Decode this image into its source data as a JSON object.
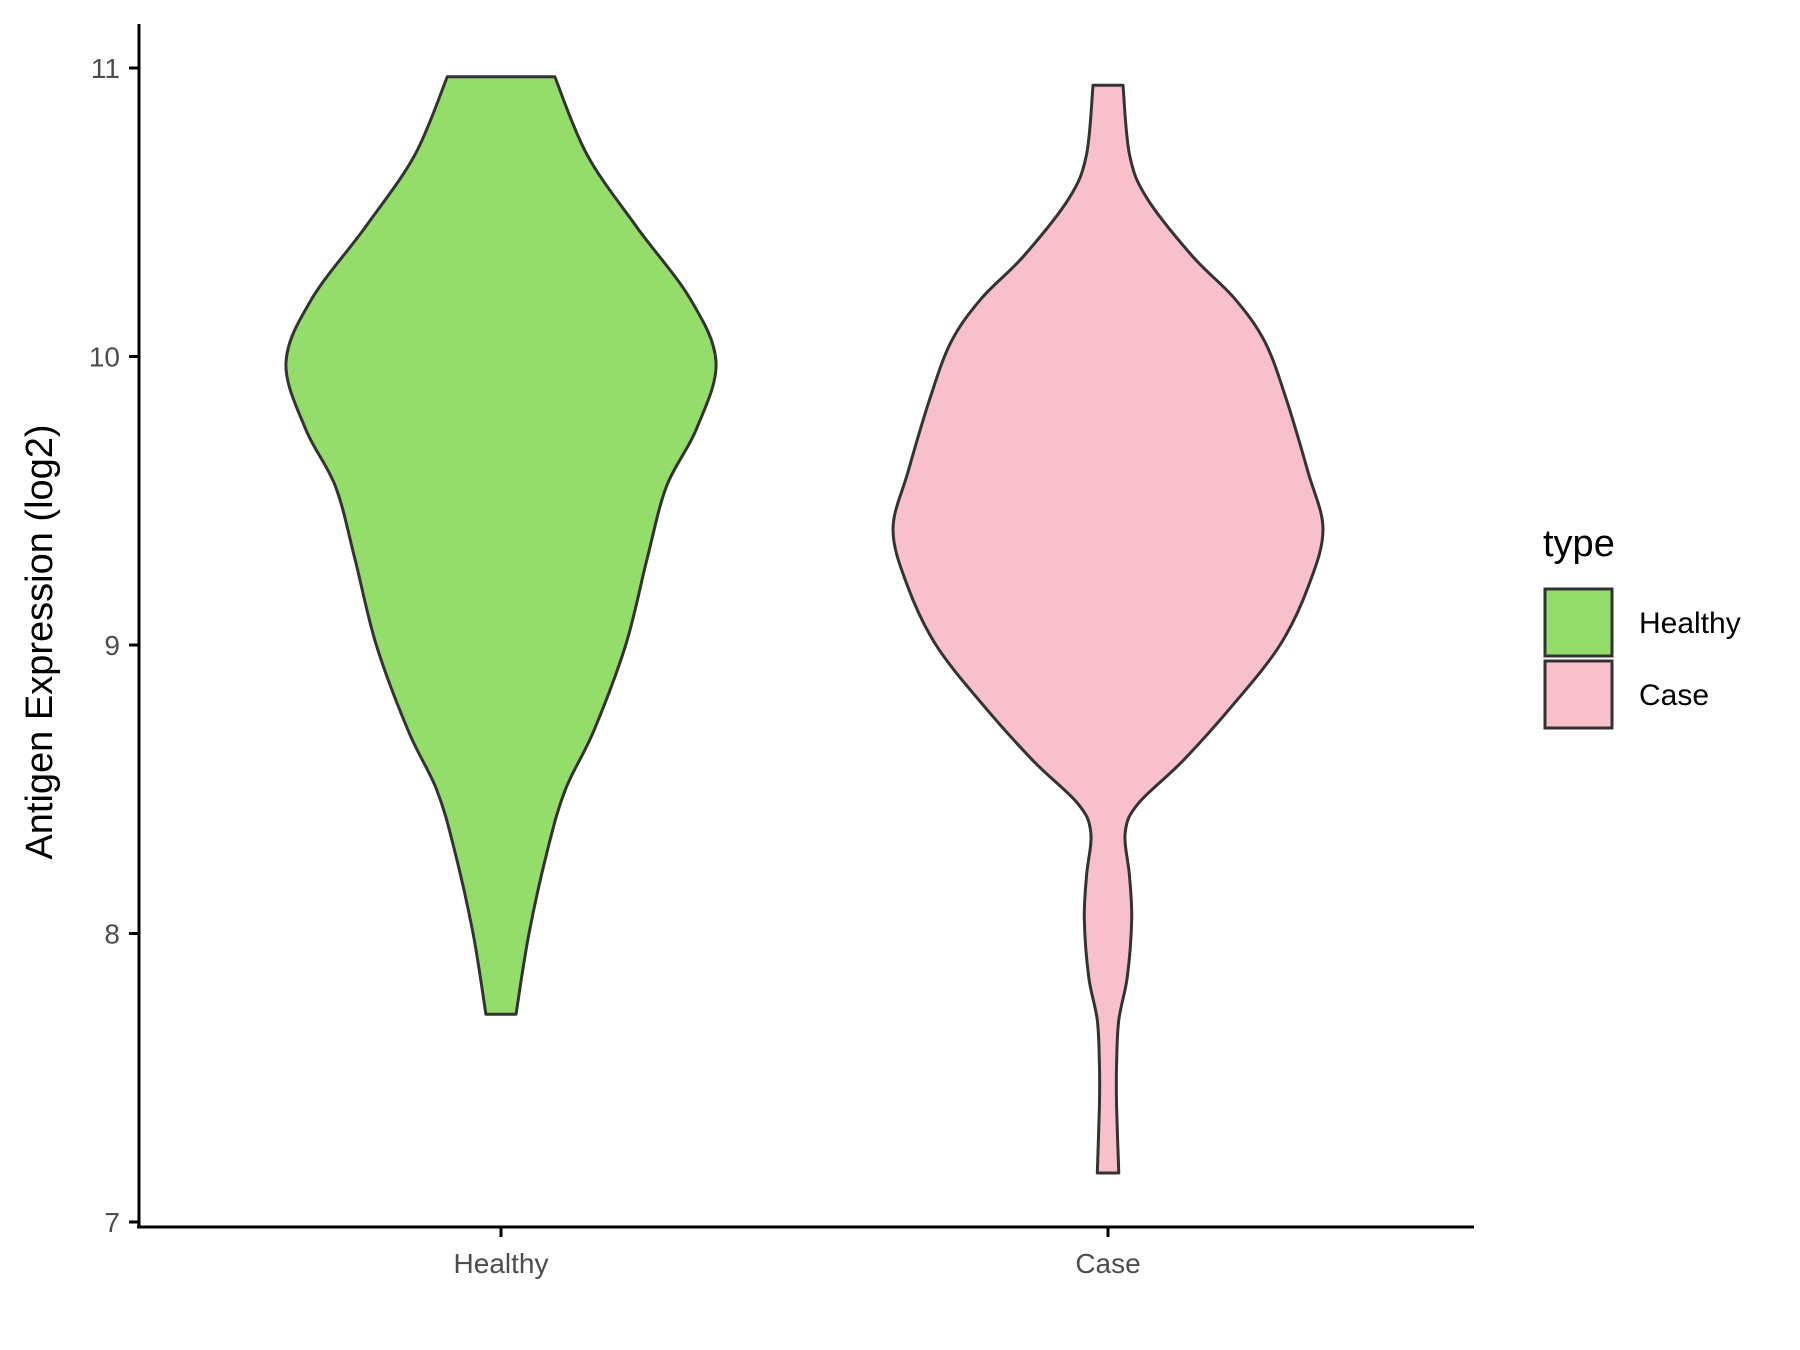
{
  "chart_data": {
    "type": "violin",
    "ylabel": "Antigen Expression (log2)",
    "xlabel": "",
    "title": "",
    "ylim": [
      7,
      11.15
    ],
    "yticks": [
      7,
      8,
      9,
      10,
      11
    ],
    "categories": [
      "Healthy",
      "Case"
    ],
    "legend": {
      "title": "type",
      "position": "right",
      "entries": [
        {
          "label": "Healthy",
          "color": "#95DD6B"
        },
        {
          "label": "Case",
          "color": "#F7C0CB"
        }
      ]
    },
    "grid": false,
    "series": [
      {
        "category": "Healthy",
        "color": "#95DD6B",
        "min": 7.72,
        "max": 10.97,
        "density_profile": [
          [
            7.72,
            0.07
          ],
          [
            8.0,
            0.13
          ],
          [
            8.3,
            0.22
          ],
          [
            8.5,
            0.3
          ],
          [
            8.7,
            0.43
          ],
          [
            9.0,
            0.58
          ],
          [
            9.3,
            0.68
          ],
          [
            9.55,
            0.77
          ],
          [
            9.75,
            0.91
          ],
          [
            9.98,
            1.0
          ],
          [
            10.2,
            0.88
          ],
          [
            10.45,
            0.63
          ],
          [
            10.7,
            0.4
          ],
          [
            10.97,
            0.25
          ]
        ]
      },
      {
        "category": "Case",
        "color": "#F7C0CB",
        "min": 7.17,
        "max": 10.94,
        "density_profile": [
          [
            7.17,
            0.05
          ],
          [
            7.4,
            0.04
          ],
          [
            7.55,
            0.04
          ],
          [
            7.7,
            0.05
          ],
          [
            7.85,
            0.09
          ],
          [
            8.05,
            0.11
          ],
          [
            8.2,
            0.1
          ],
          [
            8.35,
            0.08
          ],
          [
            8.45,
            0.14
          ],
          [
            8.6,
            0.35
          ],
          [
            8.8,
            0.59
          ],
          [
            9.0,
            0.8
          ],
          [
            9.2,
            0.93
          ],
          [
            9.4,
            1.0
          ],
          [
            9.6,
            0.93
          ],
          [
            9.85,
            0.83
          ],
          [
            10.05,
            0.73
          ],
          [
            10.2,
            0.59
          ],
          [
            10.35,
            0.39
          ],
          [
            10.55,
            0.18
          ],
          [
            10.7,
            0.1
          ],
          [
            10.94,
            0.07
          ]
        ]
      }
    ]
  }
}
